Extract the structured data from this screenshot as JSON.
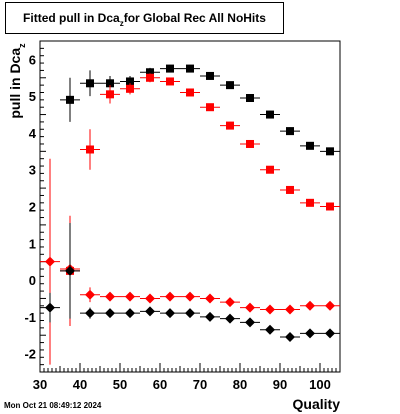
{
  "header": {
    "title_main": "Fitted pull in Dca",
    "title_sub": "z",
    "title_rest": " for Global Rec All NoHits"
  },
  "footer": {
    "timestamp": "Mon Oct 21 08:49:12 2024"
  },
  "chart_data": {
    "type": "scatter",
    "title": "Fitted pull in Dca_z for Global Rec All NoHits",
    "ylabel_main": "pull in Dca",
    "ylabel_sub": "z",
    "xlabel": "Quality",
    "xlim": [
      30,
      105
    ],
    "ylim": [
      -2.5,
      6.5
    ],
    "xticks": [
      30,
      40,
      50,
      60,
      70,
      80,
      90,
      100
    ],
    "yticks": [
      -2,
      -1,
      0,
      1,
      2,
      3,
      4,
      5,
      6
    ],
    "x": [
      32.5,
      37.5,
      42.5,
      47.5,
      52.5,
      57.5,
      62.5,
      67.5,
      72.5,
      77.5,
      82.5,
      87.5,
      92.5,
      97.5,
      102.5
    ],
    "xerr": 2.5,
    "series": [
      {
        "marker": "square",
        "color": "#000000",
        "values": [
          null,
          4.9,
          5.35,
          5.35,
          5.4,
          5.65,
          5.75,
          5.75,
          5.55,
          5.3,
          4.95,
          4.5,
          4.05,
          3.65,
          3.5
        ],
        "yerr": [
          null,
          0.6,
          0.35,
          0.2,
          0.15,
          0.12,
          0.1,
          0.1,
          0.1,
          0.1,
          0.1,
          0.1,
          0.1,
          0.1,
          0.1
        ]
      },
      {
        "marker": "square",
        "color": "#ff0000",
        "values": [
          null,
          0.25,
          3.55,
          5.05,
          5.2,
          5.5,
          5.4,
          5.1,
          4.7,
          4.2,
          3.7,
          3.0,
          2.45,
          2.1,
          2.0
        ],
        "yerr": [
          null,
          1.5,
          0.55,
          0.25,
          0.15,
          0.12,
          0.1,
          0.1,
          0.1,
          0.1,
          0.1,
          0.1,
          0.1,
          0.1,
          0.1
        ]
      },
      {
        "marker": "diamond",
        "color": "#ff0000",
        "values": [
          0.5,
          0.3,
          -0.4,
          -0.45,
          -0.45,
          -0.5,
          -0.45,
          -0.45,
          -0.5,
          -0.6,
          -0.75,
          -0.8,
          -0.8,
          -0.7,
          -0.7
        ],
        "yerr": [
          2.8,
          1.4,
          0.2,
          0.1,
          0.08,
          0.06,
          0.06,
          0.06,
          0.06,
          0.06,
          0.06,
          0.06,
          0.06,
          0.06,
          0.06
        ]
      },
      {
        "marker": "diamond",
        "color": "#000000",
        "values": [
          -0.75,
          0.25,
          -0.9,
          -0.9,
          -0.9,
          -0.85,
          -0.9,
          -0.9,
          -1.0,
          -1.05,
          -1.15,
          -1.35,
          -1.55,
          -1.45,
          -1.45
        ],
        "yerr": [
          0.4,
          1.3,
          0.15,
          0.1,
          0.08,
          0.06,
          0.06,
          0.06,
          0.06,
          0.06,
          0.06,
          0.06,
          0.06,
          0.06,
          0.06
        ]
      }
    ]
  }
}
